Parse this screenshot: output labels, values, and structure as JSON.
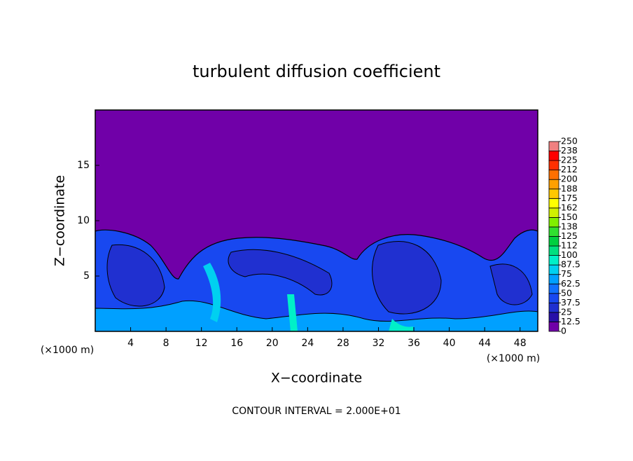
{
  "chart_data": {
    "type": "contour",
    "title": "turbulent diffusion coefficient",
    "x_label": "X−coordinate",
    "y_label": "Z−coordinate",
    "x_unit": "(×1000 m)",
    "x_unit_right": "(×1000 m)",
    "footer": "CONTOUR INTERVAL = 2.000E+01",
    "xlim": [
      0,
      50
    ],
    "xticks": [
      4,
      8,
      12,
      16,
      20,
      24,
      28,
      32,
      36,
      40,
      44,
      48
    ],
    "ylim": [
      0,
      20
    ],
    "yticks": [
      5,
      10,
      15
    ],
    "colorbar": {
      "levels": [
        0,
        12.5,
        25,
        37.5,
        50,
        62.5,
        75,
        87.5,
        100,
        {
          "value": 112.5,
          "label": "112"
        },
        125,
        {
          "value": 137.5,
          "label": "138"
        },
        150,
        {
          "value": 162.5,
          "label": "162"
        },
        175,
        {
          "value": 187.5,
          "label": "188"
        },
        200,
        {
          "value": 212.5,
          "label": "212"
        },
        225,
        {
          "value": 237.5,
          "label": "238"
        },
        250
      ],
      "colors": [
        "#7000a8",
        "#2810a8",
        "#2030d0",
        "#1848f0",
        "#1070ff",
        "#00a0ff",
        "#00d0f0",
        "#00f0c8",
        "#00e080",
        "#00d040",
        "#30e030",
        "#80f000",
        "#d0f000",
        "#ffff00",
        "#ffc800",
        "#ffa000",
        "#ff7000",
        "#ff3000",
        "#ff0000",
        "#f08080"
      ]
    }
  }
}
